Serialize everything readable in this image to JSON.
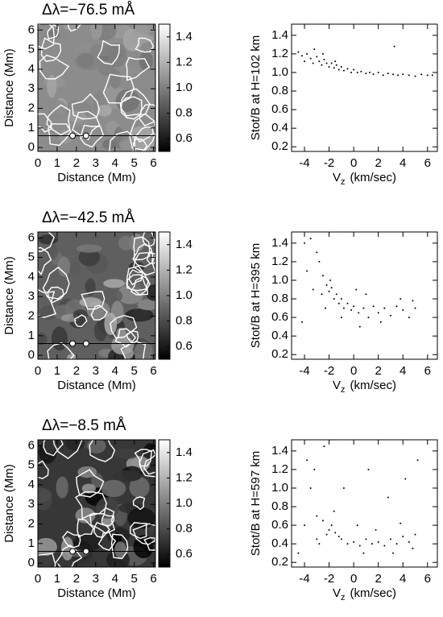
{
  "chart_data": [
    {
      "type": "image",
      "title": "Δλ=−76.5 mÅ",
      "xlabel": "Distance (Mm)",
      "ylabel": "Distance (Mm)",
      "xlim": [
        0,
        6.1
      ],
      "ylim": [
        -0.2,
        6.3
      ],
      "xticks": [
        0,
        1,
        2,
        3,
        4,
        5,
        6
      ],
      "yticks": [
        0,
        1,
        2,
        3,
        4,
        5,
        6
      ],
      "line_y": 0.6,
      "markers_x": [
        1.8,
        2.5
      ],
      "colorbar": {
        "clim": [
          0.5,
          1.5
        ],
        "ticks": [
          0.6,
          0.8,
          {
            "value": 1.0,
            "label": "1.0"
          },
          1.2,
          1.4
        ]
      }
    },
    {
      "type": "scatter",
      "ylabel": "Stot/B at H=102 km",
      "xlabel": {
        "main": "V",
        "sub": "z",
        "rest": "(km/sec)"
      },
      "xlim": [
        -5.05,
        6.8
      ],
      "ylim": [
        0.15,
        1.52
      ],
      "xticks": [
        -4,
        -2,
        0,
        2,
        4,
        6
      ],
      "yticks": [
        0.2,
        0.4,
        0.6,
        0.8,
        {
          "value": 1.0,
          "label": "1.0"
        },
        1.2,
        1.4
      ],
      "x": [
        -4.5,
        -4.2,
        -4,
        -3.8,
        -3.5,
        -3.3,
        -3,
        -2.8,
        -2.6,
        -2.4,
        -2.2,
        -2,
        -1.8,
        -1.6,
        -1.4,
        -1.2,
        -1,
        -0.8,
        -0.5,
        -0.2,
        0,
        0.3,
        0.6,
        1,
        1.3,
        1.6,
        2,
        2.4,
        2.8,
        3.2,
        3.6,
        4,
        4.5,
        5,
        5.5,
        6,
        6.4,
        -3.2,
        -2.5,
        -1.5,
        3.3
      ],
      "y": [
        1.22,
        1.18,
        1.12,
        1.2,
        1.15,
        1.1,
        1.17,
        1.12,
        1.08,
        1.14,
        1.1,
        1.06,
        1.1,
        1.05,
        1.08,
        1.03,
        1.06,
        1.02,
        1.04,
        1.0,
        1.03,
        1.0,
        1.01,
        0.99,
        1.0,
        0.98,
        1.0,
        0.97,
        0.99,
        0.98,
        0.97,
        0.98,
        0.97,
        0.96,
        0.98,
        0.97,
        0.97,
        1.25,
        1.2,
        1.12,
        1.28
      ]
    },
    {
      "type": "image",
      "title": "Δλ=−42.5 mÅ",
      "xlabel": "Distance (Mm)",
      "ylabel": "Distance (Mm)",
      "xlim": [
        0,
        6.1
      ],
      "ylim": [
        -0.2,
        6.3
      ],
      "xticks": [
        0,
        1,
        2,
        3,
        4,
        5,
        6
      ],
      "yticks": [
        0,
        1,
        2,
        3,
        4,
        5,
        6
      ],
      "line_y": 0.6,
      "markers_x": [
        1.8,
        2.5
      ],
      "colorbar": {
        "clim": [
          0.5,
          1.5
        ],
        "ticks": [
          0.6,
          0.8,
          {
            "value": 1.0,
            "label": "1.0"
          },
          1.2,
          1.4
        ]
      }
    },
    {
      "type": "scatter",
      "ylabel": "Stot/B at H=395 km",
      "xlabel": {
        "main": "V",
        "sub": "z",
        "rest": "(km/sec)"
      },
      "xlim": [
        -5.05,
        6.8
      ],
      "ylim": [
        0.15,
        1.52
      ],
      "xticks": [
        -4,
        -2,
        0,
        2,
        4,
        6
      ],
      "yticks": [
        0.2,
        0.4,
        0.6,
        0.8,
        {
          "value": 1.0,
          "label": "1.0"
        },
        1.2,
        1.4
      ],
      "x": [
        -3.5,
        -3,
        -2.8,
        -2.5,
        -2.2,
        -2,
        -1.8,
        -1.6,
        -1.4,
        -1.2,
        -1,
        -0.8,
        -0.5,
        -0.2,
        0,
        0.4,
        0.8,
        1.2,
        1.6,
        2,
        2.5,
        3,
        3.5,
        4,
        4.5,
        5,
        -4,
        -3.8,
        -2.6,
        -1.9,
        -1,
        0.5,
        2.2,
        3.8,
        -4.2,
        -3.3,
        1,
        -2.3,
        4.8,
        0.2
      ],
      "y": [
        1.45,
        1.3,
        1.2,
        1.05,
        0.95,
        0.88,
        0.92,
        0.8,
        0.85,
        0.75,
        0.8,
        0.7,
        0.75,
        0.68,
        0.72,
        0.65,
        0.7,
        0.6,
        0.72,
        0.65,
        0.7,
        0.62,
        0.72,
        0.68,
        0.6,
        0.7,
        1.4,
        1.1,
        0.85,
        1.0,
        0.6,
        0.5,
        0.55,
        0.8,
        0.55,
        0.9,
        0.85,
        0.7,
        0.78,
        0.9
      ]
    },
    {
      "type": "image",
      "title": "Δλ=−8.5 mÅ",
      "xlabel": "Distance (Mm)",
      "ylabel": "Distance (Mm)",
      "xlim": [
        0,
        6.1
      ],
      "ylim": [
        -0.2,
        6.3
      ],
      "xticks": [
        0,
        1,
        2,
        3,
        4,
        5,
        6
      ],
      "yticks": [
        0,
        1,
        2,
        3,
        4,
        5,
        6
      ],
      "line_y": 0.6,
      "markers_x": [
        1.8,
        2.5
      ],
      "colorbar": {
        "clim": [
          0.5,
          1.5
        ],
        "ticks": [
          0.6,
          0.8,
          {
            "value": 1.0,
            "label": "1.0"
          },
          1.2,
          1.4
        ]
      }
    },
    {
      "type": "scatter",
      "ylabel": "Stot/B at H=597 km",
      "xlabel": {
        "main": "V",
        "sub": "z",
        "rest": "(km/sec)"
      },
      "xlim": [
        -5.05,
        6.8
      ],
      "ylim": [
        0.15,
        1.52
      ],
      "xticks": [
        -4,
        -2,
        0,
        2,
        4,
        6
      ],
      "yticks": [
        0.2,
        0.4,
        0.6,
        0.8,
        {
          "value": 1.0,
          "label": "1.0"
        },
        1.2,
        1.4
      ],
      "x": [
        -2,
        -1.8,
        -2.2,
        -1.5,
        -2.5,
        -1.2,
        -3,
        -3.5,
        -3.8,
        -3.2,
        -1,
        -0.5,
        0,
        0.5,
        1,
        1.5,
        2,
        2.5,
        3,
        3.5,
        4,
        4.5,
        5,
        -4,
        -2.8,
        -1.6,
        0.3,
        1.8,
        3.8,
        4.2,
        5.2,
        -0.8,
        2.8,
        -2.4,
        1.2,
        -4.5,
        0.8,
        3.2,
        -3,
        4.8
      ],
      "y": [
        0.55,
        0.6,
        0.5,
        0.52,
        0.65,
        0.48,
        0.7,
        1.0,
        1.3,
        1.2,
        0.45,
        0.4,
        0.42,
        0.38,
        0.45,
        0.4,
        0.42,
        0.38,
        0.45,
        0.4,
        0.48,
        0.42,
        0.5,
        0.6,
        0.4,
        0.75,
        0.6,
        0.55,
        0.62,
        1.1,
        1.3,
        1.0,
        0.9,
        1.45,
        1.2,
        0.3,
        0.3,
        0.3,
        0.45,
        0.35
      ]
    }
  ]
}
